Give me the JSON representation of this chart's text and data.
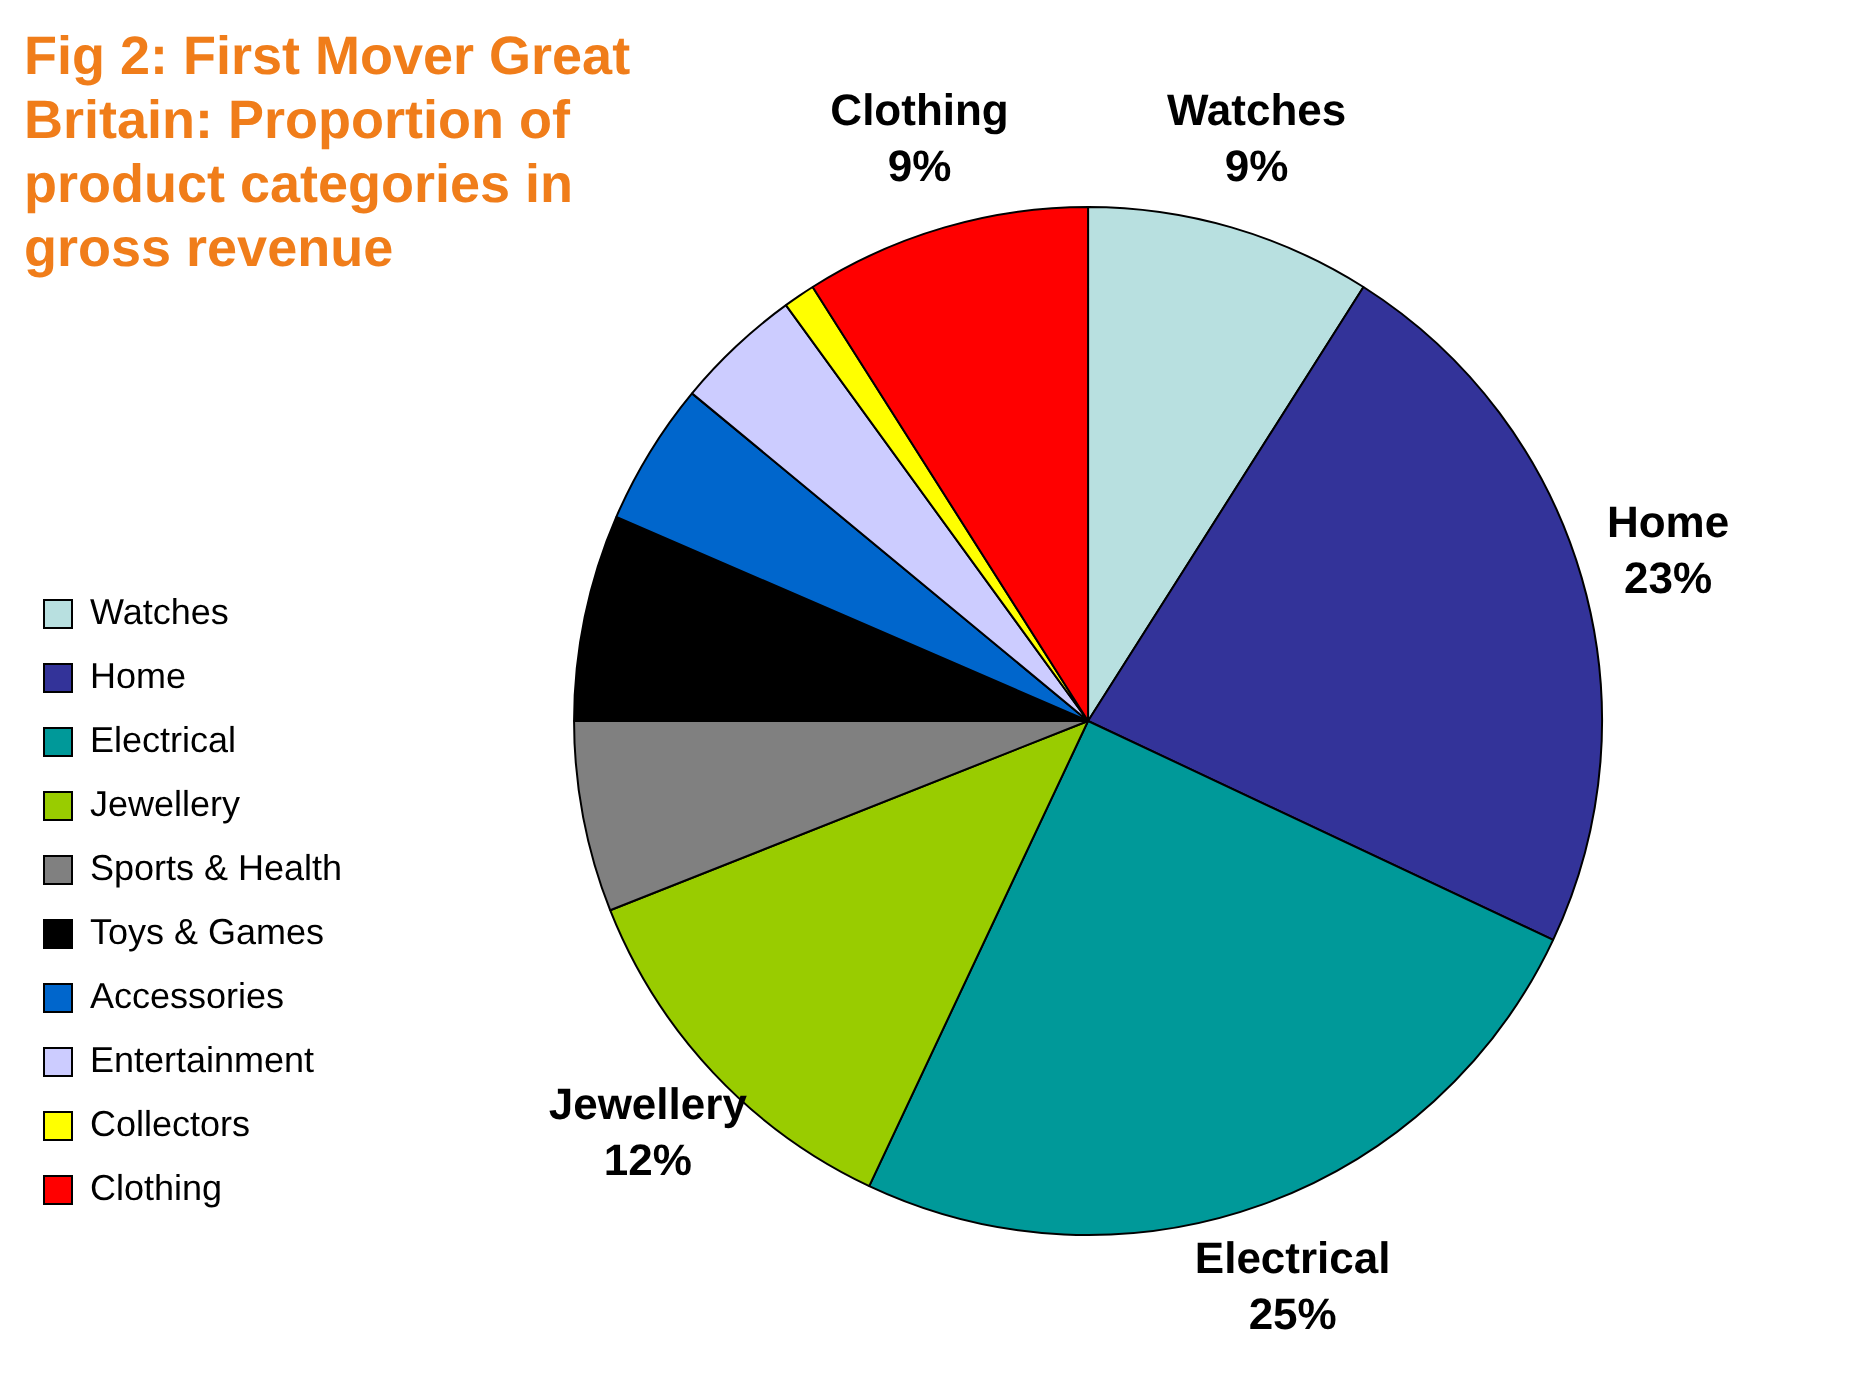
{
  "chart_data": {
    "type": "pie",
    "title": "Fig 2: First Mover Great Britain: Proportion of product categories in gross revenue",
    "categories": [
      "Watches",
      "Home",
      "Electrical",
      "Jewellery",
      "Sports & Health",
      "Toys & Games",
      "Accessories",
      "Entertainment",
      "Collectors",
      "Clothing"
    ],
    "values": [
      9,
      23,
      25,
      12,
      6,
      6.5,
      4.5,
      4,
      1,
      9
    ],
    "value_labels": [
      "9%",
      "23%",
      "25%",
      "12%",
      null,
      null,
      null,
      null,
      null,
      "9%"
    ],
    "colors": [
      "#b8e0e0",
      "#333399",
      "#009999",
      "#99cc00",
      "#808080",
      "#000000",
      "#0066cc",
      "#ccccff",
      "#ffff00",
      "#ff0000"
    ],
    "legend": "bottom left"
  }
}
